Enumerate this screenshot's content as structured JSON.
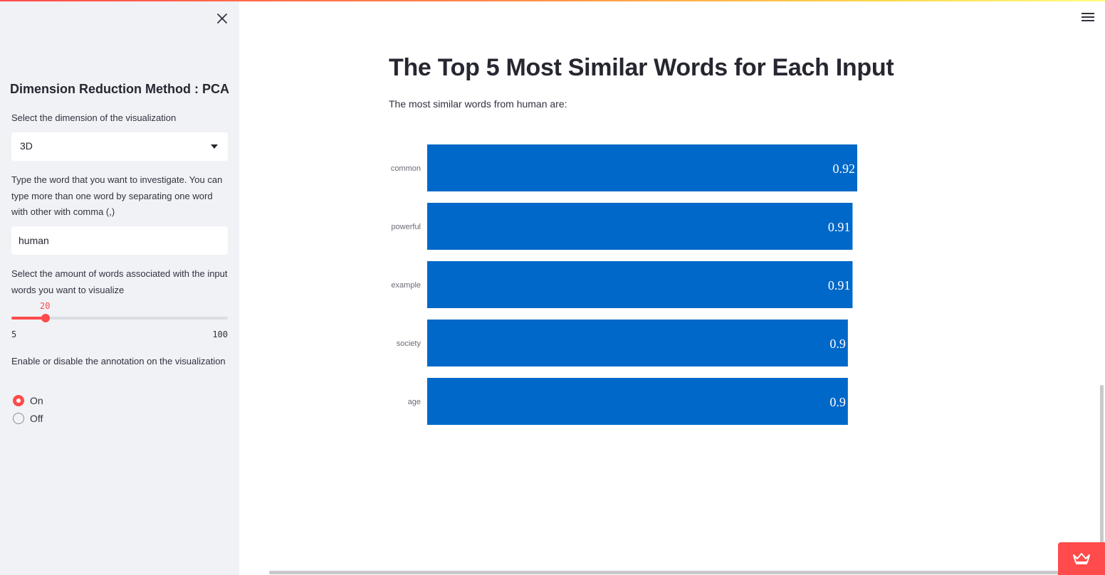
{
  "sidebar": {
    "title": "Dimension Reduction Method : PCA",
    "dimension": {
      "label": "Select the dimension of the visualization",
      "value": "3D"
    },
    "word_input": {
      "label": "Type the word that you want to investigate. You can type more than one word by separating one word with other with comma (,)",
      "value": "human"
    },
    "slider": {
      "label": "Select the amount of words associated with the input words you want to visualize",
      "value": 20,
      "value_text": "20",
      "min": 5,
      "min_text": "5",
      "max": 100,
      "max_text": "100"
    },
    "annotation": {
      "label": "Enable or disable the annotation on the visualization",
      "options": [
        "On",
        "Off"
      ],
      "selected": "On"
    }
  },
  "main": {
    "title": "The Top 5 Most Similar Words for Each Input",
    "subtitle": "The most similar words from human are:"
  },
  "colors": {
    "accent": "#ff4b4b",
    "bar": "#0068c9",
    "sidebar_bg": "#f0f2f6"
  },
  "icons": {
    "close": "close-icon",
    "menu": "hamburger-menu-icon",
    "badge": "streamlit-crown-icon"
  },
  "chart_data": {
    "type": "bar",
    "orientation": "horizontal",
    "categories": [
      "common",
      "powerful",
      "example",
      "society",
      "age"
    ],
    "values": [
      0.92,
      0.91,
      0.91,
      0.9,
      0.9
    ],
    "value_labels": [
      "0.92",
      "0.91",
      "0.91",
      "0.9",
      "0.9"
    ],
    "xlim": [
      0,
      0.92
    ],
    "grid": false
  }
}
